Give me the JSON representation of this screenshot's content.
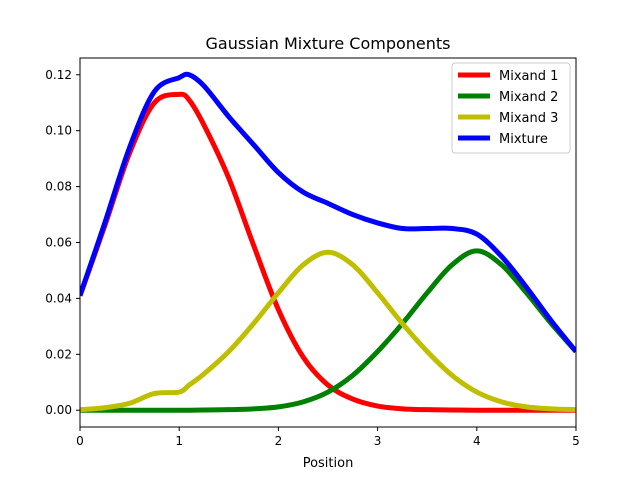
{
  "chart_data": {
    "type": "line",
    "title": "Gaussian Mixture Components",
    "xlabel": "Position",
    "ylabel": "",
    "xlim": [
      0,
      5
    ],
    "ylim": [
      -0.006,
      0.126
    ],
    "xticks": [
      0,
      1,
      2,
      3,
      4,
      5
    ],
    "xtick_labels": [
      "0",
      "1",
      "2",
      "3",
      "4",
      "5"
    ],
    "yticks": [
      0.0,
      0.02,
      0.04,
      0.06,
      0.08,
      0.1,
      0.12
    ],
    "ytick_labels": [
      "0.00",
      "0.02",
      "0.04",
      "0.06",
      "0.08",
      "0.10",
      "0.12"
    ],
    "grid": false,
    "legend_position": "top-right",
    "x": [
      0,
      0.25,
      0.5,
      0.75,
      1.0,
      1.1,
      1.25,
      1.5,
      1.75,
      2.0,
      2.25,
      2.5,
      2.75,
      3.0,
      3.25,
      3.5,
      3.75,
      4.0,
      4.25,
      4.5,
      4.75,
      5.0
    ],
    "series": [
      {
        "name": "Mixand 1",
        "color": "#ff0000",
        "values": [
          0.041,
          0.066,
          0.092,
          0.11,
          0.113,
          0.111,
          0.102,
          0.083,
          0.059,
          0.036,
          0.019,
          0.009,
          0.004,
          0.0015,
          0.0005,
          0.0002,
          0.0001,
          0.0,
          0.0,
          0.0,
          0.0,
          0.0
        ]
      },
      {
        "name": "Mixand 2",
        "color": "#008000",
        "values": [
          0.0,
          0.0,
          0.0,
          0.0,
          0.0,
          0.0,
          0.0001,
          0.0002,
          0.0005,
          0.0012,
          0.003,
          0.0065,
          0.0125,
          0.021,
          0.031,
          0.042,
          0.052,
          0.057,
          0.052,
          0.042,
          0.031,
          0.021
        ]
      },
      {
        "name": "Mixand 3",
        "color": "#bfbf00",
        "values": [
          0.0002,
          0.0009,
          0.0025,
          0.006,
          0.0065,
          0.009,
          0.013,
          0.021,
          0.031,
          0.042,
          0.052,
          0.0565,
          0.052,
          0.042,
          0.031,
          0.021,
          0.0125,
          0.0065,
          0.003,
          0.0012,
          0.0005,
          0.0002
        ]
      },
      {
        "name": "Mixture",
        "color": "#0000ff",
        "values": [
          0.041,
          0.067,
          0.094,
          0.114,
          0.119,
          0.12,
          0.116,
          0.105,
          0.095,
          0.085,
          0.078,
          0.074,
          0.07,
          0.067,
          0.065,
          0.065,
          0.065,
          0.063,
          0.055,
          0.044,
          0.032,
          0.021
        ]
      }
    ]
  }
}
